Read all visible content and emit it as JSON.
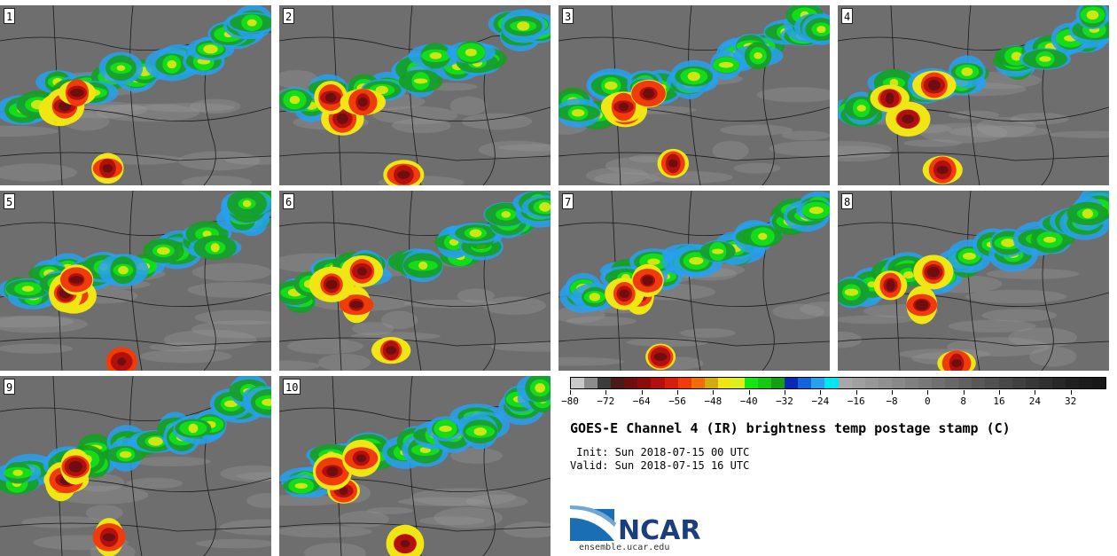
{
  "panels": [
    {
      "label": "1"
    },
    {
      "label": "2"
    },
    {
      "label": "3"
    },
    {
      "label": "4"
    },
    {
      "label": "5"
    },
    {
      "label": "6"
    },
    {
      "label": "7"
    },
    {
      "label": "8"
    },
    {
      "label": "9"
    },
    {
      "label": "10"
    }
  ],
  "colorbar": {
    "ticks": [
      "−80",
      "−72",
      "−64",
      "−56",
      "−48",
      "−40",
      "−32",
      "−24",
      "−16",
      "−8",
      "0",
      "8",
      "16",
      "24",
      "32"
    ],
    "tick_values": [
      -80,
      -72,
      -64,
      -56,
      -48,
      -40,
      -32,
      -24,
      -16,
      -8,
      0,
      8,
      16,
      24,
      32
    ],
    "min": -80,
    "max": 40,
    "colors": [
      "#c8c8c8",
      "#8c8c8c",
      "#3c3c3c",
      "#4a1a1a",
      "#6e0f0f",
      "#8c0a0a",
      "#b40f0f",
      "#d81e0a",
      "#f03c0a",
      "#f06e0a",
      "#d2aa14",
      "#f0e614",
      "#dcf01e",
      "#14e614",
      "#14c814",
      "#14a014",
      "#0a28b4",
      "#1464dc",
      "#28a0f0",
      "#00e6f0",
      "#a8a8a8",
      "#a0a0a0",
      "#989898",
      "#909090",
      "#888888",
      "#808080",
      "#787878",
      "#707070",
      "#686868",
      "#606060",
      "#585858",
      "#505050",
      "#484848",
      "#404040",
      "#383838",
      "#303030",
      "#282828",
      "#202020",
      "#1c1c1c",
      "#181818"
    ]
  },
  "title": "GOES-E Channel 4 (IR) brightness temp postage stamp (C)",
  "init_line": " Init: Sun 2018-07-15 00 UTC",
  "valid_line": "Valid: Sun 2018-07-15 16 UTC",
  "logo_text": "NCAR",
  "url": "ensemble.ucar.edu"
}
